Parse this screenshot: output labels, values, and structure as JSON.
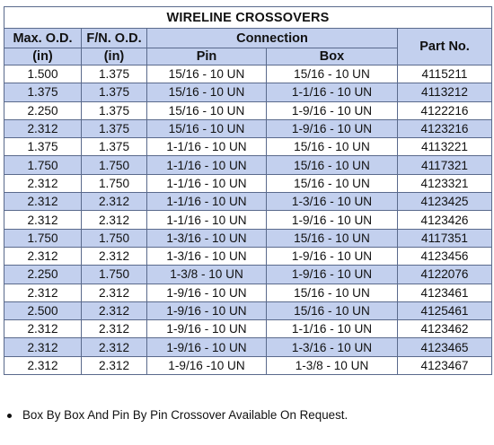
{
  "table": {
    "title": "WIRELINE CROSSOVERS",
    "headers": {
      "max_od": "Max. O.D.",
      "max_od_unit": "(in)",
      "fn_od": "F/N. O.D.",
      "fn_od_unit": "(in)",
      "connection": "Connection",
      "pin": "Pin",
      "box": "Box",
      "part_no": "Part No."
    },
    "rows": [
      {
        "max_od": "1.500",
        "fn_od": "1.375",
        "pin": "15/16 - 10 UN",
        "box": "15/16 - 10 UN",
        "part_no": "4115211"
      },
      {
        "max_od": "1.375",
        "fn_od": "1.375",
        "pin": "15/16 - 10 UN",
        "box": "1-1/16 - 10 UN",
        "part_no": "4113212"
      },
      {
        "max_od": "2.250",
        "fn_od": "1.375",
        "pin": "15/16 - 10 UN",
        "box": "1-9/16 - 10 UN",
        "part_no": "4122216"
      },
      {
        "max_od": "2.312",
        "fn_od": "1.375",
        "pin": "15/16 - 10 UN",
        "box": "1-9/16 - 10 UN",
        "part_no": "4123216"
      },
      {
        "max_od": "1.375",
        "fn_od": "1.375",
        "pin": "1-1/16 - 10 UN",
        "box": "15/16 - 10 UN",
        "part_no": "4113221"
      },
      {
        "max_od": "1.750",
        "fn_od": "1.750",
        "pin": "1-1/16 - 10 UN",
        "box": "15/16 - 10 UN",
        "part_no": "4117321"
      },
      {
        "max_od": "2.312",
        "fn_od": "1.750",
        "pin": "1-1/16 - 10 UN",
        "box": "15/16 - 10 UN",
        "part_no": "4123321"
      },
      {
        "max_od": "2.312",
        "fn_od": "2.312",
        "pin": "1-1/16 - 10 UN",
        "box": "1-3/16 - 10 UN",
        "part_no": "4123425"
      },
      {
        "max_od": "2.312",
        "fn_od": "2.312",
        "pin": "1-1/16 - 10 UN",
        "box": "1-9/16 - 10 UN",
        "part_no": "4123426"
      },
      {
        "max_od": "1.750",
        "fn_od": "1.750",
        "pin": "1-3/16 - 10 UN",
        "box": "15/16 - 10 UN",
        "part_no": "4117351"
      },
      {
        "max_od": "2.312",
        "fn_od": "2.312",
        "pin": "1-3/16 - 10 UN",
        "box": "1-9/16 - 10 UN",
        "part_no": "4123456"
      },
      {
        "max_od": "2.250",
        "fn_od": "1.750",
        "pin": "1-3/8 - 10 UN",
        "box": "1-9/16 - 10 UN",
        "part_no": "4122076"
      },
      {
        "max_od": "2.312",
        "fn_od": "2.312",
        "pin": "1-9/16 - 10 UN",
        "box": "15/16 - 10 UN",
        "part_no": "4123461"
      },
      {
        "max_od": "2.500",
        "fn_od": "2.312",
        "pin": "1-9/16 - 10 UN",
        "box": "15/16 - 10 UN",
        "part_no": "4125461"
      },
      {
        "max_od": "2.312",
        "fn_od": "2.312",
        "pin": "1-9/16 - 10 UN",
        "box": "1-1/16 - 10 UN",
        "part_no": "4123462"
      },
      {
        "max_od": "2.312",
        "fn_od": "2.312",
        "pin": "1-9/16 - 10 UN",
        "box": "1-3/16 - 10 UN",
        "part_no": "4123465"
      },
      {
        "max_od": "2.312",
        "fn_od": "2.312",
        "pin": "1-9/16 -10 UN",
        "box": "1-3/8 - 10 UN",
        "part_no": "4123467"
      }
    ]
  },
  "note": "Box By Box And Pin By Pin Crossover Available On Request.",
  "colors": {
    "header_band": "#c3d0ee",
    "border": "#5a6a8c"
  }
}
